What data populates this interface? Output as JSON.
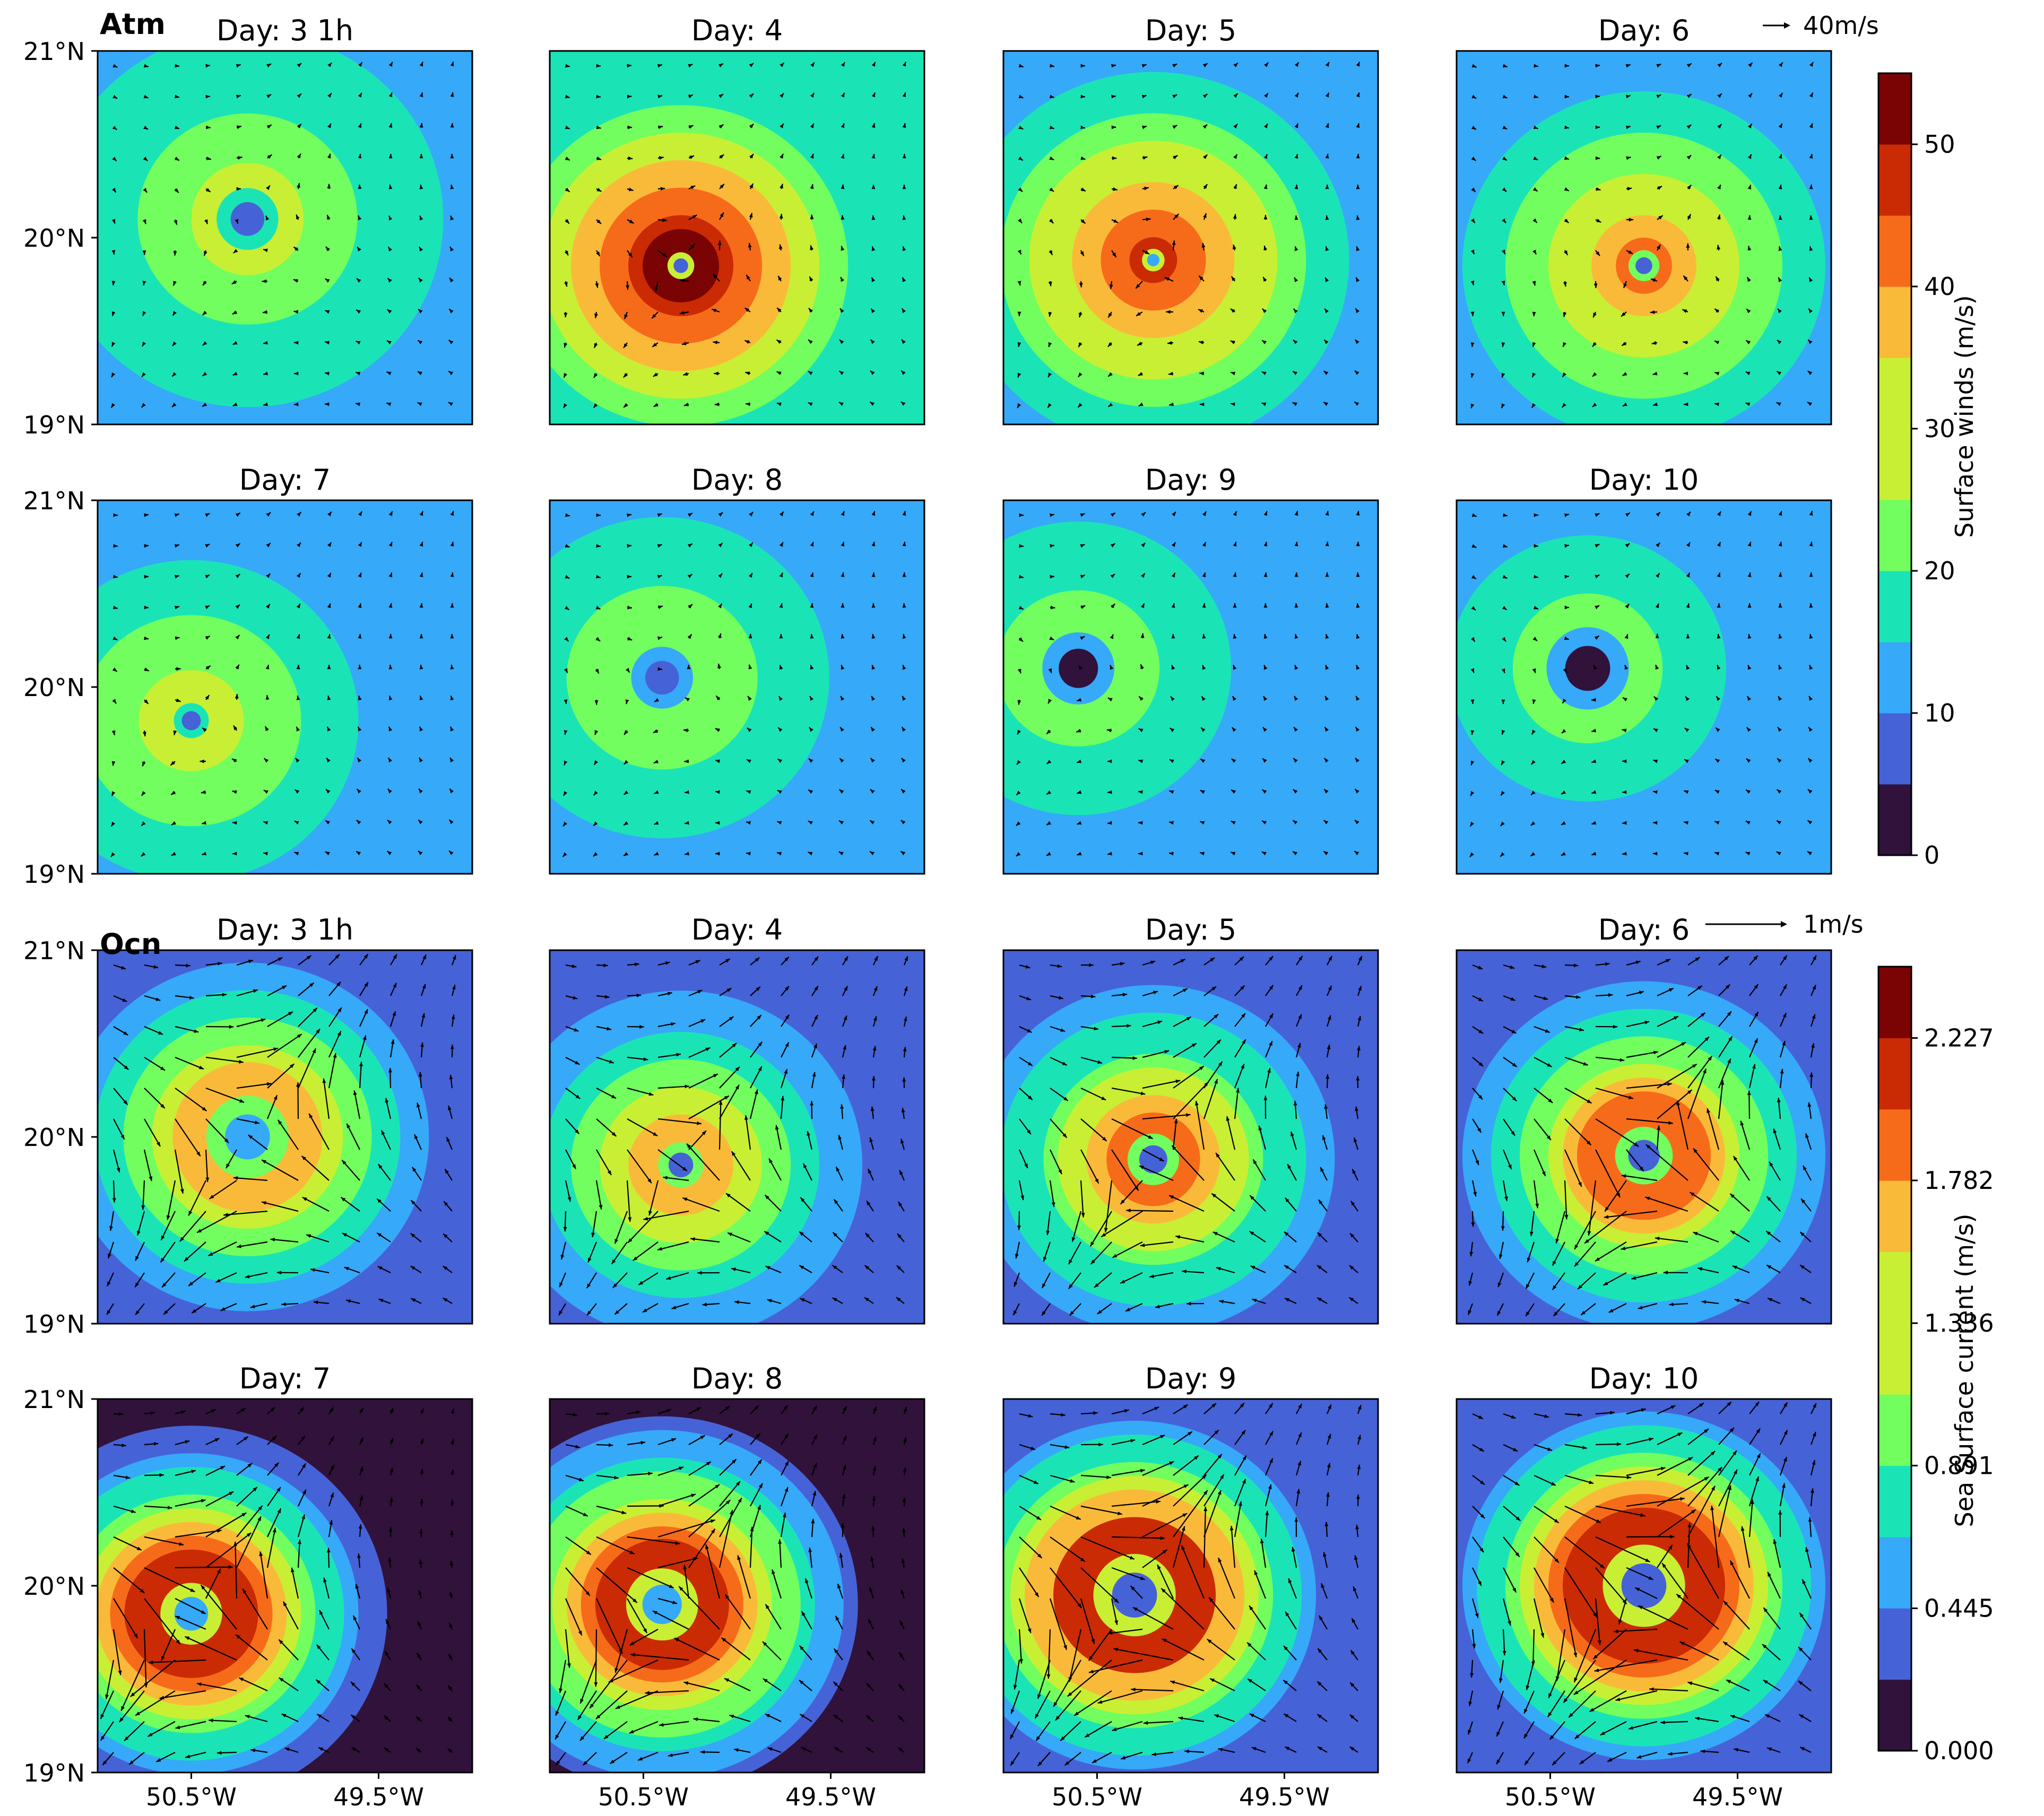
{
  "figure": {
    "atm_row_label": "Atm",
    "ocn_row_label": "Ocn",
    "atm_reference_vector": "40m/s",
    "ocn_reference_vector": "1m/s",
    "atm_colorbar_label": "Surface winds (m/s)",
    "ocn_colorbar_label": "Sea Surface current (m/s)",
    "y_tick_labels": [
      "21°N",
      "20°N",
      "19°N"
    ],
    "x_tick_labels": [
      "50.5°W",
      "49.5°W"
    ]
  },
  "chart_data": [
    {
      "type": "heatmap",
      "variable": "Surface winds (m/s)",
      "colormap": "turbo",
      "panels": [
        {
          "title": "Day: 3 1h",
          "peak": 28,
          "eye": 6,
          "rmw": 0.3,
          "ambient": 16,
          "center": [
            -50.2,
            20.1
          ]
        },
        {
          "title": "Day: 4",
          "peak": 55,
          "eye": 9,
          "rmw": 0.13,
          "ambient": 17,
          "center": [
            -50.3,
            19.85
          ]
        },
        {
          "title": "Day: 5",
          "peak": 48,
          "eye": 12,
          "rmw": 0.11,
          "ambient": 15,
          "center": [
            -50.2,
            19.88
          ]
        },
        {
          "title": "Day: 6",
          "peak": 40,
          "eye": 9,
          "rmw": 0.15,
          "ambient": 14,
          "center": [
            -50.0,
            19.85
          ]
        },
        {
          "title": "Day: 7",
          "peak": 32,
          "eye": 8,
          "rmw": 0.17,
          "ambient": 13,
          "center": [
            -50.5,
            19.82
          ]
        },
        {
          "title": "Day: 8",
          "peak": 26,
          "eye": 6,
          "rmw": 0.3,
          "ambient": 14,
          "center": [
            -50.4,
            20.05
          ]
        },
        {
          "title": "Day: 9",
          "peak": 24,
          "eye": 4,
          "rmw": 0.35,
          "ambient": 13,
          "center": [
            -50.6,
            20.1
          ]
        },
        {
          "title": "Day: 10",
          "peak": 22,
          "eye": 3,
          "rmw": 0.4,
          "ambient": 13,
          "center": [
            -50.3,
            20.1
          ]
        }
      ],
      "colorbar": {
        "label": "Surface winds (m/s)",
        "ticks": [
          0,
          10,
          20,
          30,
          40,
          50
        ],
        "range": [
          0,
          55
        ],
        "levels": 11
      }
    },
    {
      "type": "heatmap",
      "variable": "Sea Surface current (m/s)",
      "colormap": "turbo",
      "panels": [
        {
          "title": "Day: 3 1h",
          "peak": 1.55,
          "eye": 0.5,
          "rmw": 0.4,
          "ambient": 0.3,
          "center": [
            -50.2,
            20.0
          ]
        },
        {
          "title": "Day: 4",
          "peak": 1.7,
          "eye": 0.3,
          "rmw": 0.22,
          "ambient": 0.3,
          "center": [
            -50.3,
            19.85
          ]
        },
        {
          "title": "Day: 5",
          "peak": 1.8,
          "eye": 0.4,
          "rmw": 0.25,
          "ambient": 0.3,
          "center": [
            -50.2,
            19.88
          ]
        },
        {
          "title": "Day: 6",
          "peak": 1.95,
          "eye": 0.4,
          "rmw": 0.28,
          "ambient": 0.3,
          "center": [
            -50.0,
            19.9
          ]
        },
        {
          "title": "Day: 7",
          "peak": 2.2,
          "eye": 0.5,
          "rmw": 0.3,
          "ambient": 0.15,
          "center": [
            -50.5,
            19.85
          ]
        },
        {
          "title": "Day: 8",
          "peak": 2.1,
          "eye": 0.5,
          "rmw": 0.35,
          "ambient": 0.2,
          "center": [
            -50.4,
            19.9
          ]
        },
        {
          "title": "Day: 9",
          "peak": 2.1,
          "eye": 0.4,
          "rmw": 0.4,
          "ambient": 0.25,
          "center": [
            -50.3,
            19.95
          ]
        },
        {
          "title": "Day: 10",
          "peak": 2.2,
          "eye": 0.4,
          "rmw": 0.4,
          "ambient": 0.25,
          "center": [
            -50.0,
            20.0
          ]
        }
      ],
      "colorbar": {
        "label": "Sea Surface current (m/s)",
        "ticks": [
          0.0,
          0.445,
          0.891,
          1.336,
          1.782,
          2.227
        ],
        "tick_labels": [
          "0.000",
          "0.445",
          "0.891",
          "1.336",
          "1.782",
          "2.227"
        ],
        "range": [
          0,
          2.45
        ],
        "levels": 11
      }
    }
  ],
  "axes": {
    "lon_range": [
      -51.0,
      -49.0
    ],
    "lat_range": [
      19.0,
      21.0
    ],
    "lat_ticks": [
      21,
      20,
      19
    ],
    "lon_ticks": [
      -50.5,
      -49.5
    ]
  },
  "colors": {
    "turbo": [
      "#30123b",
      "#4662d7",
      "#36a9f9",
      "#1ae4b6",
      "#72fe5e",
      "#c8ef34",
      "#faba39",
      "#f66b19",
      "#ca2a04",
      "#7a0403"
    ]
  }
}
